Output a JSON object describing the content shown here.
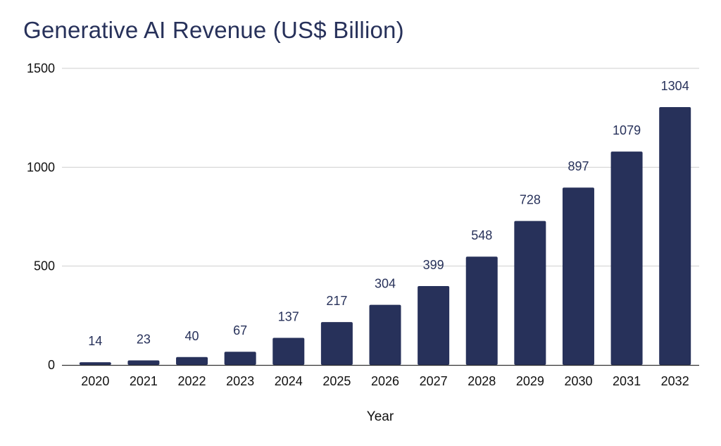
{
  "chart_data": {
    "type": "bar",
    "title": "Generative AI Revenue (US$ Billion)",
    "xlabel": "Year",
    "ylabel": "",
    "ylim": [
      0,
      1500
    ],
    "yticks": [
      "0",
      "500",
      "1000",
      "1500"
    ],
    "grid": true,
    "bar_color": "#27315a",
    "categories": [
      "2020",
      "2021",
      "2022",
      "2023",
      "2024",
      "2025",
      "2026",
      "2027",
      "2028",
      "2029",
      "2030",
      "2031",
      "2032"
    ],
    "values": [
      14,
      23,
      40,
      67,
      137,
      217,
      304,
      399,
      548,
      728,
      897,
      1079,
      1304
    ],
    "data_labels": [
      "14",
      "23",
      "40",
      "67",
      "137",
      "217",
      "304",
      "399",
      "548",
      "728",
      "897",
      "1079",
      "1304"
    ]
  }
}
